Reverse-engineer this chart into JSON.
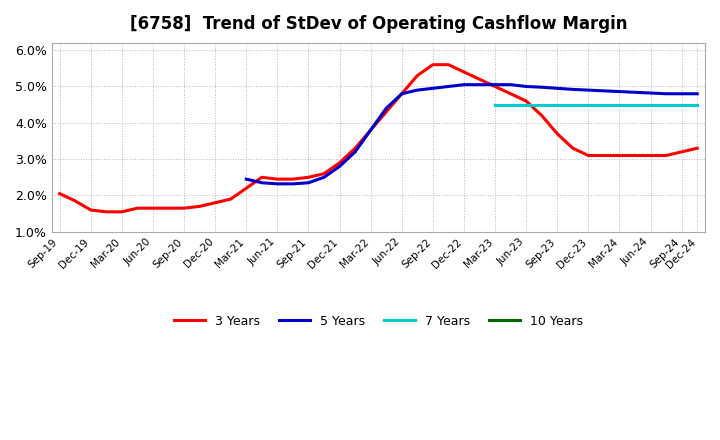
{
  "title": "[6758]  Trend of StDev of Operating Cashflow Margin",
  "ylim": [
    0.01,
    0.062
  ],
  "yticks": [
    0.01,
    0.02,
    0.03,
    0.04,
    0.05,
    0.06
  ],
  "ytick_labels": [
    "1.0%",
    "2.0%",
    "3.0%",
    "4.0%",
    "5.0%",
    "6.0%"
  ],
  "background_color": "#ffffff",
  "grid_color": "#aaaaaa",
  "series": {
    "3yr": {
      "color": "#ff0000",
      "label": "3 Years",
      "x": [
        0,
        1,
        2,
        3,
        4,
        5,
        6,
        7,
        8,
        9,
        10,
        11,
        12,
        13,
        14,
        15,
        16,
        17,
        18,
        19,
        20,
        21,
        22,
        23,
        24,
        25,
        26,
        27,
        28,
        29,
        30,
        31,
        32,
        33,
        34,
        35,
        36,
        37,
        38,
        39,
        40,
        41
      ],
      "y": [
        0.0205,
        0.0185,
        0.016,
        0.0155,
        0.0155,
        0.0165,
        0.0165,
        0.0165,
        0.0165,
        0.017,
        0.018,
        0.019,
        0.022,
        0.025,
        0.0245,
        0.0245,
        0.025,
        0.026,
        0.029,
        0.033,
        0.038,
        0.043,
        0.048,
        0.053,
        0.056,
        0.056,
        0.054,
        0.052,
        0.05,
        0.048,
        0.046,
        0.042,
        0.037,
        0.033,
        0.031,
        0.031,
        0.031,
        0.031,
        0.031,
        0.031,
        0.032,
        0.033
      ]
    },
    "5yr": {
      "color": "#0000cc",
      "label": "5 Years",
      "x": [
        12,
        13,
        14,
        15,
        16,
        17,
        18,
        19,
        20,
        21,
        22,
        23,
        24,
        25,
        26,
        27,
        28,
        29,
        30,
        31,
        32,
        33,
        34,
        35,
        36,
        37,
        38,
        39,
        40,
        41
      ],
      "y": [
        0.0245,
        0.0235,
        0.0232,
        0.0232,
        0.0235,
        0.025,
        0.028,
        0.032,
        0.038,
        0.044,
        0.048,
        0.049,
        0.0495,
        0.05,
        0.0505,
        0.0505,
        0.0505,
        0.0505,
        0.05,
        0.0498,
        0.0495,
        0.0492,
        0.049,
        0.0488,
        0.0486,
        0.0484,
        0.0482,
        0.048,
        0.048,
        0.048
      ]
    },
    "7yr": {
      "color": "#00cccc",
      "label": "7 Years",
      "x": [
        28,
        29,
        30,
        31,
        32,
        33,
        34,
        35,
        36,
        37,
        38,
        39,
        40,
        41
      ],
      "y": [
        0.045,
        0.045,
        0.045,
        0.045,
        0.045,
        0.045,
        0.045,
        0.045,
        0.045,
        0.045,
        0.045,
        0.045,
        0.045,
        0.045
      ]
    },
    "10yr": {
      "color": "#006600",
      "label": "10 Years",
      "x": [],
      "y": []
    }
  },
  "x_tick_positions": [
    0,
    2,
    4,
    6,
    8,
    10,
    12,
    14,
    16,
    18,
    20,
    22,
    24,
    26,
    28,
    30,
    32,
    34,
    36,
    38,
    40,
    41
  ],
  "x_labels": [
    "Sep-19",
    "Dec-19",
    "Mar-20",
    "Jun-20",
    "Sep-20",
    "Dec-20",
    "Mar-21",
    "Jun-21",
    "Sep-21",
    "Dec-21",
    "Mar-22",
    "Jun-22",
    "Sep-22",
    "Dec-22",
    "Mar-23",
    "Jun-23",
    "Sep-23",
    "Dec-23",
    "Mar-24",
    "Jun-24",
    "Sep-24",
    "Dec-24"
  ],
  "legend_labels": [
    "3 Years",
    "5 Years",
    "7 Years",
    "10 Years"
  ],
  "legend_colors": [
    "#ff0000",
    "#0000cc",
    "#00cccc",
    "#006600"
  ]
}
